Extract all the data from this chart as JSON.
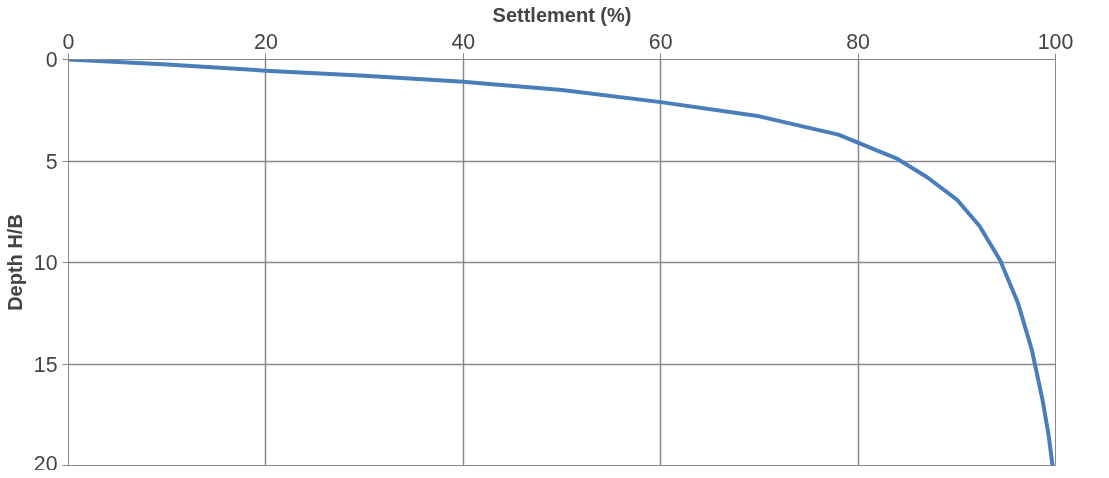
{
  "chart_data": {
    "type": "line",
    "xlabel": "Settlement (%)",
    "ylabel": "Depth H/B",
    "series": [
      {
        "color": "#4a7ebb",
        "x": [
          0,
          10,
          20,
          30,
          40,
          50,
          60,
          70,
          78,
          84,
          87,
          90,
          92.3,
          94.4,
          96.2,
          97.6,
          98.7,
          99.3,
          99.7
        ],
        "values": [
          0,
          0.25,
          0.55,
          0.8,
          1.1,
          1.5,
          2.1,
          2.8,
          3.7,
          4.9,
          5.8,
          6.9,
          8.2,
          9.9,
          12,
          14.3,
          16.8,
          18.5,
          20
        ]
      }
    ],
    "xlim": [
      0,
      100
    ],
    "xticks": [
      0,
      20,
      40,
      60,
      80,
      100
    ],
    "ylim": [
      20,
      0
    ],
    "yticks": [
      0,
      5,
      10,
      15,
      20
    ],
    "grid": true,
    "marker": "none",
    "line_style": "solid"
  }
}
